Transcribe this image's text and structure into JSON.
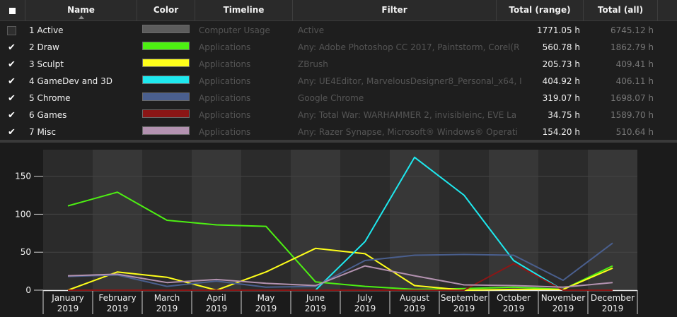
{
  "header": {
    "select_all": "■",
    "name": "Name",
    "color": "Color",
    "timeline": "Timeline",
    "filter": "Filter",
    "total_range": "Total (range)",
    "total_all": "Total (all)"
  },
  "rows": [
    {
      "checked": false,
      "name": "1 Active",
      "color": "#5c5c5c",
      "timeline": "Computer Usage",
      "filter": "Active",
      "total_range": "1771.05 h",
      "total_all": "6745.12 h"
    },
    {
      "checked": true,
      "name": "2 Draw",
      "color": "#4df012",
      "timeline": "Applications",
      "filter": "Any: Adobe Photoshop CC 2017, Paintstorm, Corel(R",
      "total_range": "560.78 h",
      "total_all": "1862.79 h"
    },
    {
      "checked": true,
      "name": "3 Sculpt",
      "color": "#ffff1a",
      "timeline": "Applications",
      "filter": "ZBrush",
      "total_range": "205.73 h",
      "total_all": "409.41 h"
    },
    {
      "checked": true,
      "name": "4 GameDev and 3D",
      "color": "#1ee8ee",
      "timeline": "Applications",
      "filter": "Any: UE4Editor, MarvelousDesigner8_Personal_x64, I",
      "total_range": "404.92 h",
      "total_all": "406.11 h"
    },
    {
      "checked": true,
      "name": "5 Chrome",
      "color": "#4a5f8e",
      "timeline": "Applications",
      "filter": "Google Chrome",
      "total_range": "319.07 h",
      "total_all": "1698.07 h"
    },
    {
      "checked": true,
      "name": "6 Games",
      "color": "#8b1616",
      "timeline": "Applications",
      "filter": "Any: Total War: WARHAMMER 2, invisibleinc, EVE La",
      "total_range": "34.75 h",
      "total_all": "1589.70 h"
    },
    {
      "checked": true,
      "name": "7 Misc",
      "color": "#b392b0",
      "timeline": "Applications",
      "filter": "Any: Razer Synapse, Microsoft® Windows® Operati",
      "total_range": "154.20 h",
      "total_all": "510.64 h"
    }
  ],
  "chart_data": {
    "type": "line",
    "categories": [
      "January\n2019",
      "February\n2019",
      "March\n2019",
      "April\n2019",
      "May\n2019",
      "June\n2019",
      "July\n2019",
      "August\n2019",
      "September\n2019",
      "October\n2019",
      "November\n2019",
      "December\n2019"
    ],
    "yticks": [
      0,
      50,
      100,
      150
    ],
    "ylim": [
      0,
      185
    ],
    "grid": true,
    "series": [
      {
        "name": "2 Draw",
        "color": "#4df012",
        "values": [
          111,
          129,
          92,
          86,
          84,
          11,
          5,
          1,
          2,
          4,
          1,
          32
        ]
      },
      {
        "name": "3 Sculpt",
        "color": "#ffff1a",
        "values": [
          0,
          24,
          17,
          0,
          24,
          55,
          48,
          6,
          0,
          1,
          1,
          29
        ]
      },
      {
        "name": "4 GameDev and 3D",
        "color": "#1ee8ee",
        "values": [
          0,
          0,
          0,
          0,
          0,
          0,
          64,
          175,
          125,
          39,
          0,
          0
        ]
      },
      {
        "name": "5 Chrome",
        "color": "#4a5f8e",
        "values": [
          18,
          20,
          5,
          12,
          4,
          5,
          39,
          46,
          47,
          46,
          13,
          62
        ]
      },
      {
        "name": "6 Games",
        "color": "#8b1616",
        "values": [
          0,
          0,
          0,
          0,
          0,
          0,
          0,
          0,
          0,
          35,
          0,
          0
        ]
      },
      {
        "name": "7 Misc",
        "color": "#b392b0",
        "values": [
          19,
          21,
          10,
          14,
          9,
          6,
          32,
          19,
          7,
          6,
          4,
          10
        ]
      }
    ]
  }
}
